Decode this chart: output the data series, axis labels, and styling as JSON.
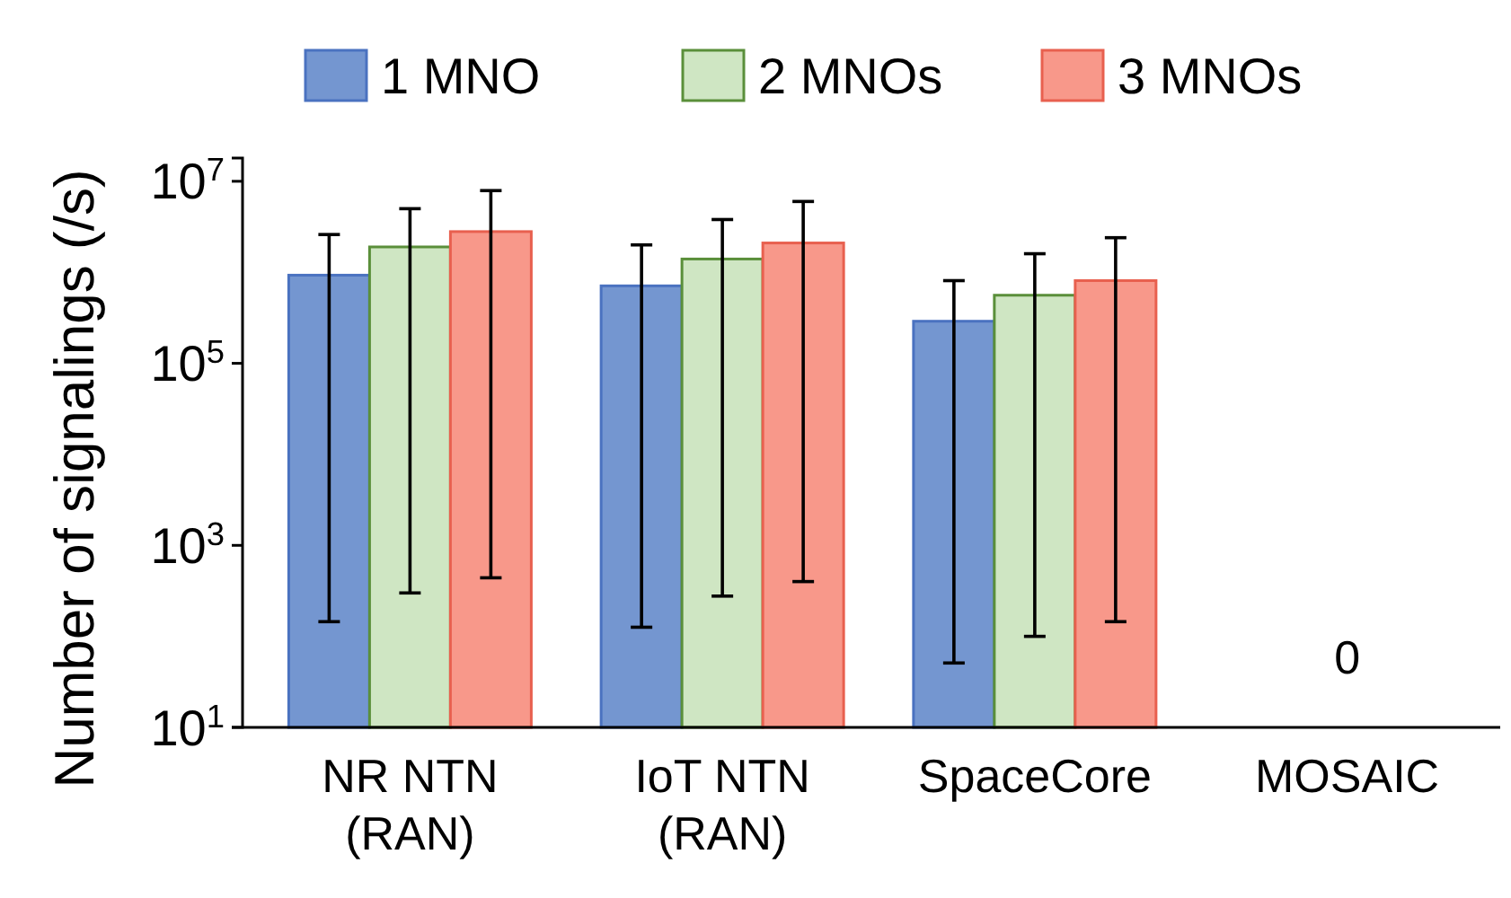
{
  "chart_data": {
    "type": "bar",
    "ylabel": "Number of signalings (/s)",
    "categories": [
      "NR NTN\n(RAN)",
      "IoT NTN\n(RAN)",
      "SpaceCore",
      "MOSAIC"
    ],
    "series": [
      {
        "name": "1 MNO",
        "color": "#7496d0",
        "values": [
          930000,
          710000,
          290000,
          null
        ],
        "errors": [
          [
            145,
            2600000
          ],
          [
            126,
            2000000
          ],
          [
            51,
            810000
          ],
          null
        ]
      },
      {
        "name": "2 MNOs",
        "color": "#cfe6c3",
        "values": [
          1900000,
          1400000,
          560000,
          null
        ],
        "errors": [
          [
            300,
            5000000
          ],
          [
            277,
            3800000
          ],
          [
            100,
            1600000
          ],
          null
        ]
      },
      {
        "name": "3 MNOs",
        "color": "#f8988a",
        "values": [
          2800000,
          2100000,
          810000,
          null
        ],
        "errors": [
          [
            440,
            7900000
          ],
          [
            400,
            6000000
          ],
          [
            145,
            2400000
          ],
          null
        ]
      }
    ],
    "annotations": [
      "0"
    ],
    "log": "y",
    "ylim": [
      10,
      18000000
    ],
    "yticks": [
      {
        "value": 10,
        "label": "10$^{1}$"
      },
      {
        "value": 1000,
        "label": "10$^{3}$"
      },
      {
        "value": 100000,
        "label": "10$^{5}$"
      },
      {
        "value": 10000000,
        "label": "10$^{7}$"
      }
    ],
    "legend": "top",
    "grid": false
  }
}
